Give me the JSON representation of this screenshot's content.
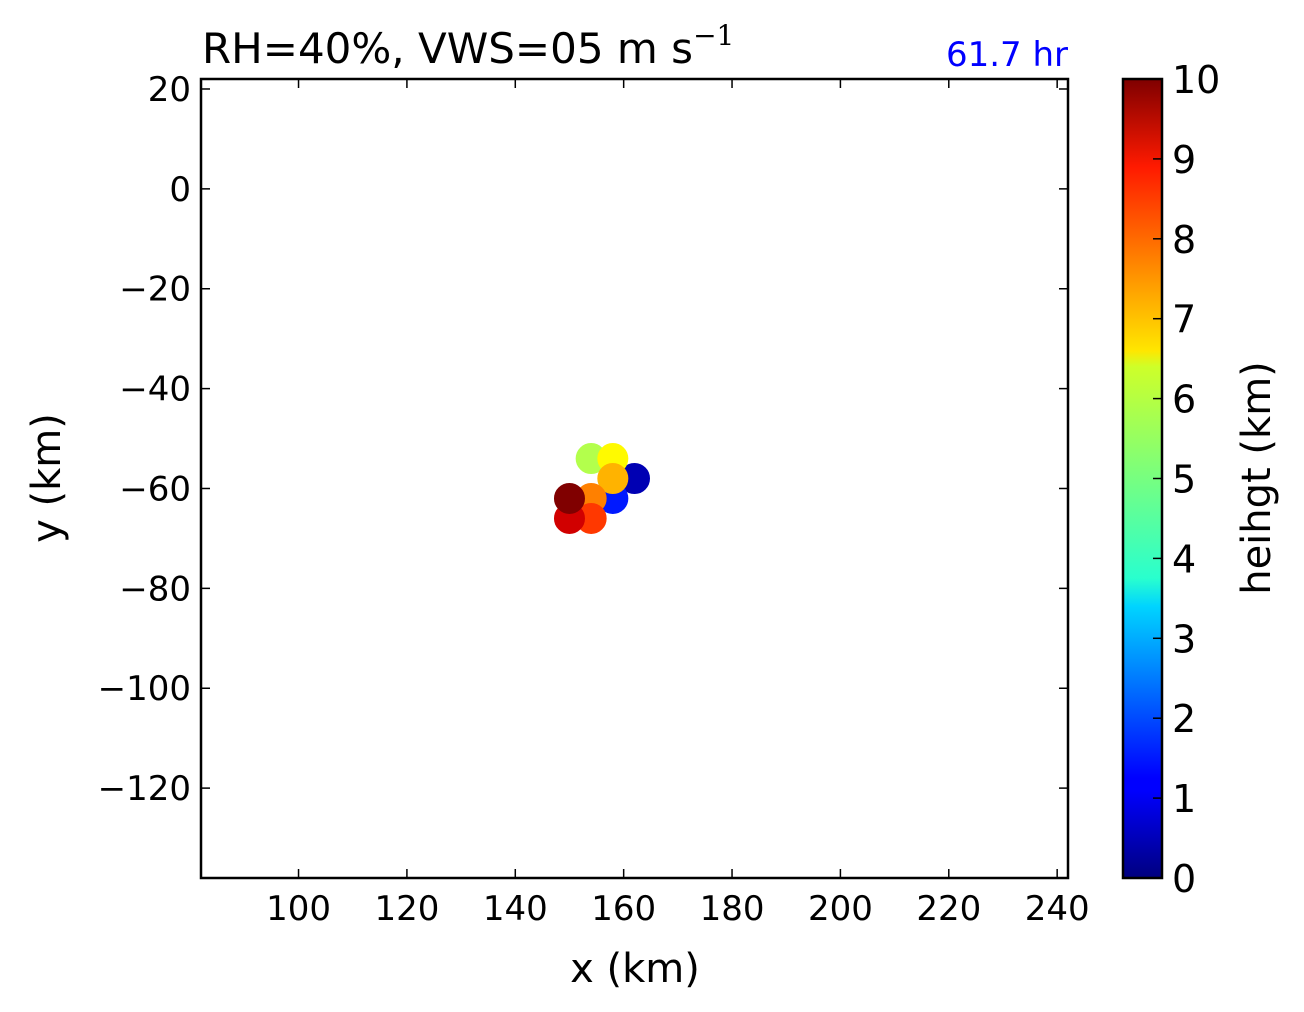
{
  "chart_data": {
    "type": "scatter",
    "title": {
      "prefix": "RH=40%, VWS=05 m s",
      "superscript": "−1"
    },
    "time_label": "61.7 hr",
    "time_label_color": "#0000ff",
    "xlabel": "x (km)",
    "ylabel": "y (km)",
    "xlim": [
      82,
      242
    ],
    "ylim": [
      -138,
      22
    ],
    "xticks": [
      100,
      120,
      140,
      160,
      180,
      200,
      220,
      240
    ],
    "yticks": [
      20,
      0,
      -20,
      -40,
      -60,
      -80,
      -100,
      -120
    ],
    "xtick_labels": [
      "100",
      "120",
      "140",
      "160",
      "180",
      "200",
      "220",
      "240"
    ],
    "ytick_labels": [
      "20",
      "0",
      "−20",
      "−40",
      "−60",
      "−80",
      "−100",
      "−120"
    ],
    "grid": false,
    "colorbar": {
      "label": "heihgt (km)",
      "range": [
        0,
        10
      ],
      "ticks": [
        0,
        1,
        2,
        3,
        4,
        5,
        6,
        7,
        8,
        9,
        10
      ],
      "tick_labels": [
        "0",
        "1",
        "2",
        "3",
        "4",
        "5",
        "6",
        "7",
        "8",
        "9",
        "10"
      ],
      "colormap": "jet"
    },
    "points": [
      {
        "x": 162,
        "y": -58,
        "height": 0.5
      },
      {
        "x": 158,
        "y": -62,
        "height": 1.5
      },
      {
        "x": 154,
        "y": -54,
        "height": 5.5
      },
      {
        "x": 158,
        "y": -54,
        "height": 6.3
      },
      {
        "x": 158,
        "y": -58,
        "height": 7.0
      },
      {
        "x": 154,
        "y": -62,
        "height": 7.5
      },
      {
        "x": 154,
        "y": -66,
        "height": 8.2
      },
      {
        "x": 150,
        "y": -66,
        "height": 9.2
      },
      {
        "x": 150,
        "y": -62,
        "height": 10
      }
    ]
  }
}
